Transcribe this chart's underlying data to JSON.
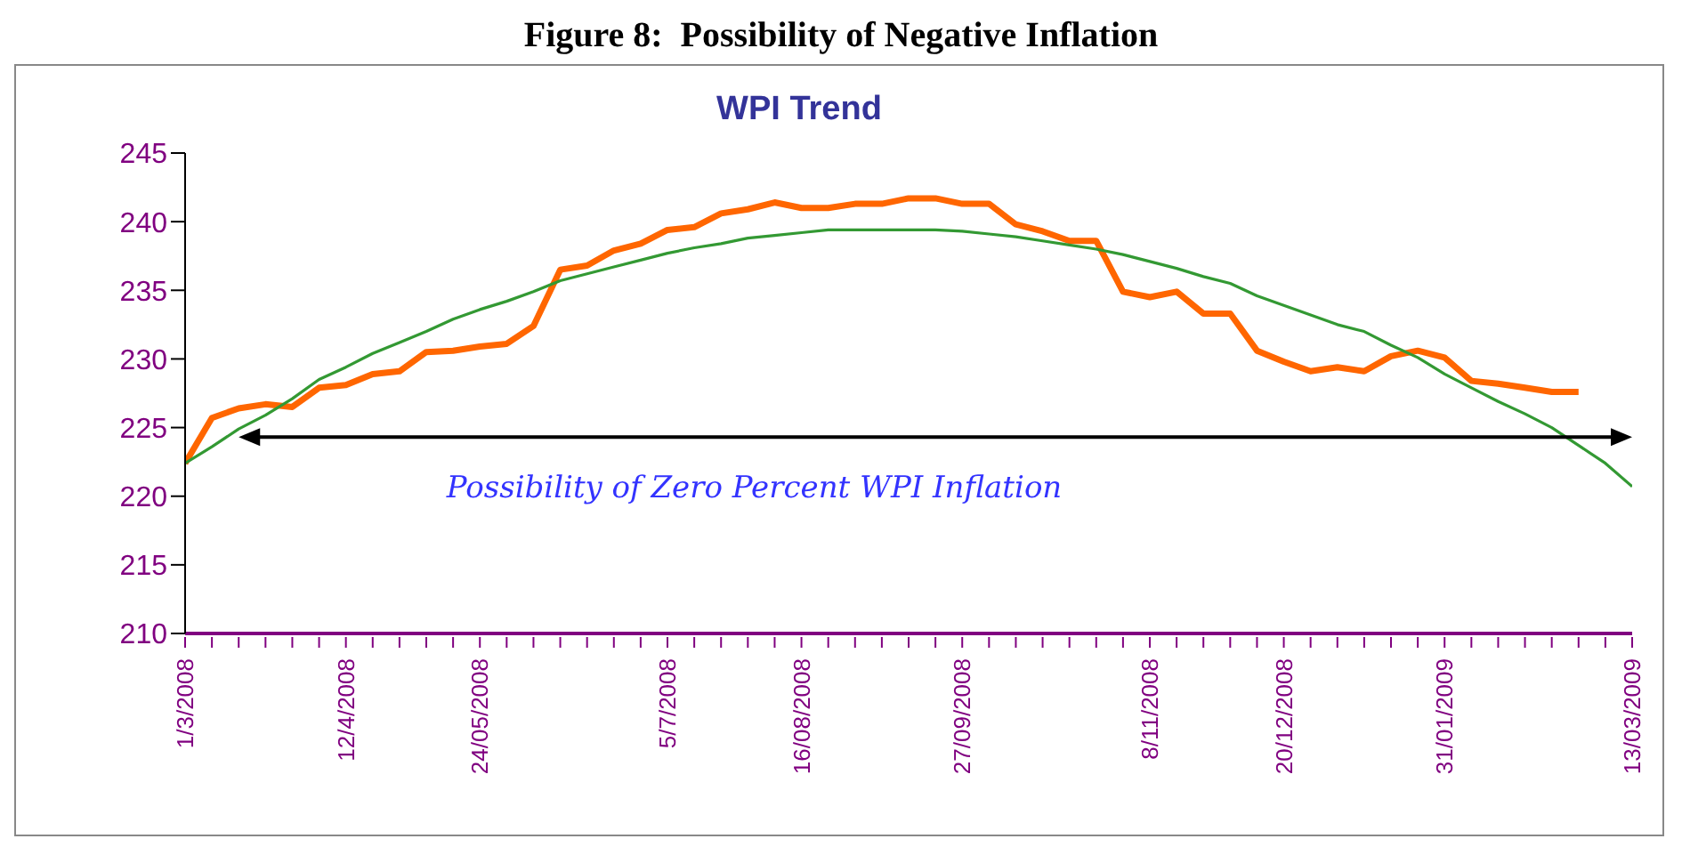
{
  "chart_data": {
    "type": "line",
    "title": "Figure 8:  Possibility of Negative Inflation",
    "subtitle": "WPI Trend",
    "categories": [
      "1/3/2008",
      null,
      null,
      null,
      null,
      null,
      "12/4/2008",
      null,
      null,
      null,
      null,
      "24/05/2008",
      null,
      null,
      null,
      null,
      null,
      null,
      "5/7/2008",
      null,
      null,
      null,
      null,
      "16/08/2008",
      null,
      null,
      null,
      null,
      null,
      "27/09/2008",
      null,
      null,
      null,
      null,
      null,
      null,
      "8/11/2008",
      null,
      null,
      null,
      null,
      "20/12/2008",
      null,
      null,
      null,
      null,
      null,
      "31/01/2009",
      null,
      null,
      null,
      null,
      null,
      null,
      "13/03/2009"
    ],
    "series": [
      {
        "color": "#ff6600",
        "values": [
          222.4,
          225.7,
          226.4,
          226.7,
          226.5,
          227.9,
          228.1,
          228.9,
          229.1,
          230.5,
          230.6,
          230.9,
          231.1,
          232.4,
          236.5,
          236.8,
          237.9,
          238.4,
          239.4,
          239.6,
          240.6,
          240.9,
          241.4,
          241.0,
          241.0,
          241.3,
          241.3,
          241.7,
          241.7,
          241.3,
          241.3,
          239.8,
          239.3,
          238.6,
          238.6,
          234.9,
          234.5,
          234.9,
          233.3,
          233.3,
          230.6,
          229.8,
          229.1,
          229.4,
          229.1,
          230.2,
          230.6,
          230.1,
          228.4,
          228.2,
          227.9,
          227.6,
          227.6,
          null,
          null
        ]
      },
      {
        "color": "#339933",
        "values": [
          222.4,
          223.6,
          224.9,
          225.9,
          227.1,
          228.5,
          229.4,
          230.4,
          231.2,
          232.0,
          232.9,
          233.6,
          234.2,
          234.9,
          235.7,
          236.2,
          236.7,
          237.2,
          237.7,
          238.1,
          238.4,
          238.8,
          239.0,
          239.2,
          239.4,
          239.4,
          239.4,
          239.4,
          239.4,
          239.3,
          239.1,
          238.9,
          238.6,
          238.3,
          238.0,
          237.6,
          237.1,
          236.6,
          236.0,
          235.5,
          234.6,
          233.9,
          233.2,
          232.5,
          232.0,
          231.0,
          230.1,
          228.9,
          227.9,
          226.9,
          226.0,
          225.0,
          223.7,
          222.4,
          220.7
        ]
      }
    ],
    "ylim": [
      210,
      245
    ],
    "yticks": [
      210,
      215,
      220,
      225,
      230,
      235,
      240,
      245
    ],
    "grid": false,
    "marker": "none",
    "line_style": "solid",
    "ref_lines": [
      {
        "axis": "y",
        "value": 224.3,
        "label": "Possibility of Zero Percent WPI Inflation",
        "color": "#000000"
      }
    ]
  }
}
